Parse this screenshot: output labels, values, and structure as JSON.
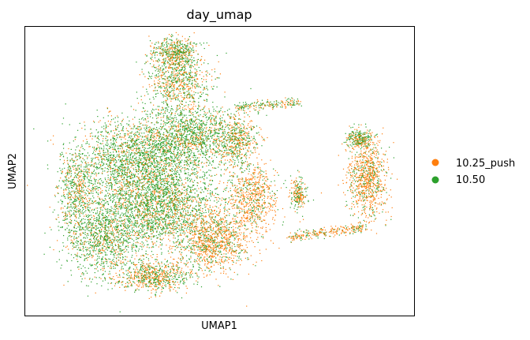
{
  "chart_data": {
    "type": "scatter",
    "title": "day_umap",
    "xlabel": "UMAP1",
    "ylabel": "UMAP2",
    "ticks": "none",
    "grid": false,
    "legend_position": "right",
    "series": [
      {
        "name": "10.25_push",
        "color": "#ff7f0e"
      },
      {
        "name": "10.50",
        "color": "#2ca02c"
      }
    ]
  }
}
